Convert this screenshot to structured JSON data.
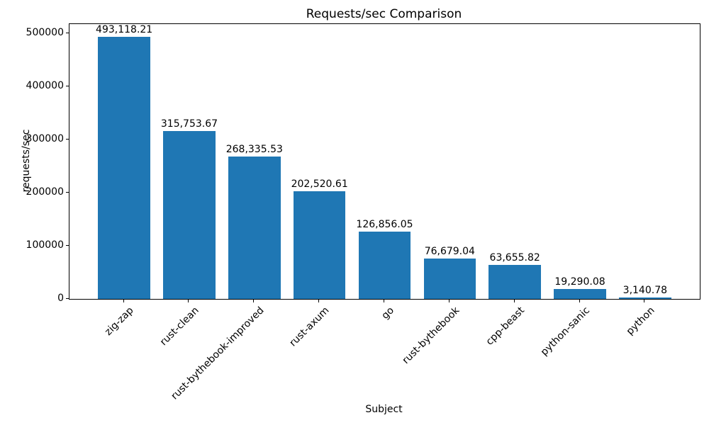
{
  "chart_data": {
    "type": "bar",
    "title": "Requests/sec Comparison",
    "xlabel": "Subject",
    "ylabel": "requests/sec",
    "categories": [
      "zig-zap",
      "rust-clean",
      "rust-bythebook-improved",
      "rust-axum",
      "go",
      "rust-bythebook",
      "cpp-beast",
      "python-sanic",
      "python"
    ],
    "values": [
      493118.21,
      315753.67,
      268335.53,
      202520.61,
      126856.05,
      76679.04,
      63655.82,
      19290.08,
      3140.78
    ],
    "value_labels": [
      "493,118.21",
      "315,753.67",
      "268,335.53",
      "202,520.61",
      "126,856.05",
      "76,679.04",
      "63,655.82",
      "19,290.08",
      "3,140.78"
    ],
    "ytick_labels": [
      "0",
      "100000",
      "200000",
      "300000",
      "400000",
      "500000"
    ],
    "yticks": [
      0,
      100000,
      200000,
      300000,
      400000,
      500000
    ],
    "ylim": [
      0,
      517774
    ],
    "x_tick_rotation_deg": 45,
    "bar_color": "#1f77b4",
    "grid": false,
    "legend_position": "none",
    "background_color": "#ffffff",
    "text_color": "#000000"
  }
}
